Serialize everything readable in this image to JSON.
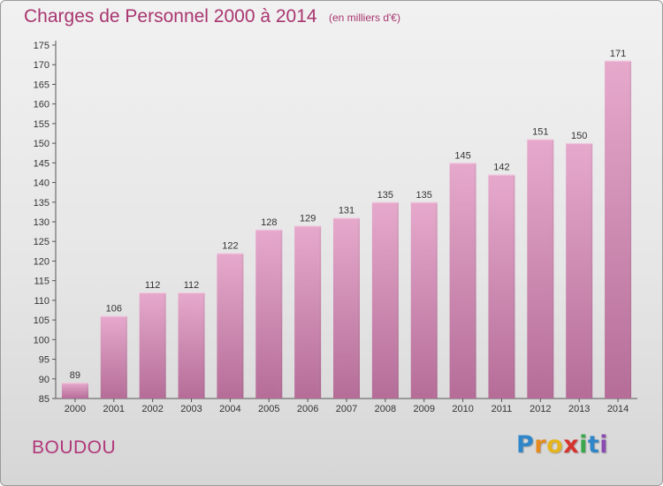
{
  "title": "Charges de Personnel 2000 à 2014",
  "subtitle": "(en milliers d'€)",
  "commune": "BOUDOU",
  "logo": [
    "P",
    "r",
    "o",
    "x",
    "i",
    "t",
    "i"
  ],
  "colors": {
    "bar_top": "#e6a9cc",
    "bar_bottom": "#b56d98",
    "title": "#a8356f"
  },
  "chart_data": {
    "type": "bar",
    "title": "Charges de Personnel 2000 à 2014",
    "subtitle": "(en milliers d'€)",
    "categories": [
      "2000",
      "2001",
      "2002",
      "2003",
      "2004",
      "2005",
      "2006",
      "2007",
      "2008",
      "2009",
      "2010",
      "2011",
      "2012",
      "2013",
      "2014"
    ],
    "values": [
      89,
      106,
      112,
      112,
      122,
      128,
      129,
      131,
      135,
      135,
      145,
      142,
      151,
      150,
      171
    ],
    "ylim": [
      85,
      175
    ],
    "yticks": [
      85,
      90,
      95,
      100,
      105,
      110,
      115,
      120,
      125,
      130,
      135,
      140,
      145,
      150,
      155,
      160,
      165,
      170,
      175
    ],
    "grid": false,
    "xlabel": "",
    "ylabel": ""
  }
}
